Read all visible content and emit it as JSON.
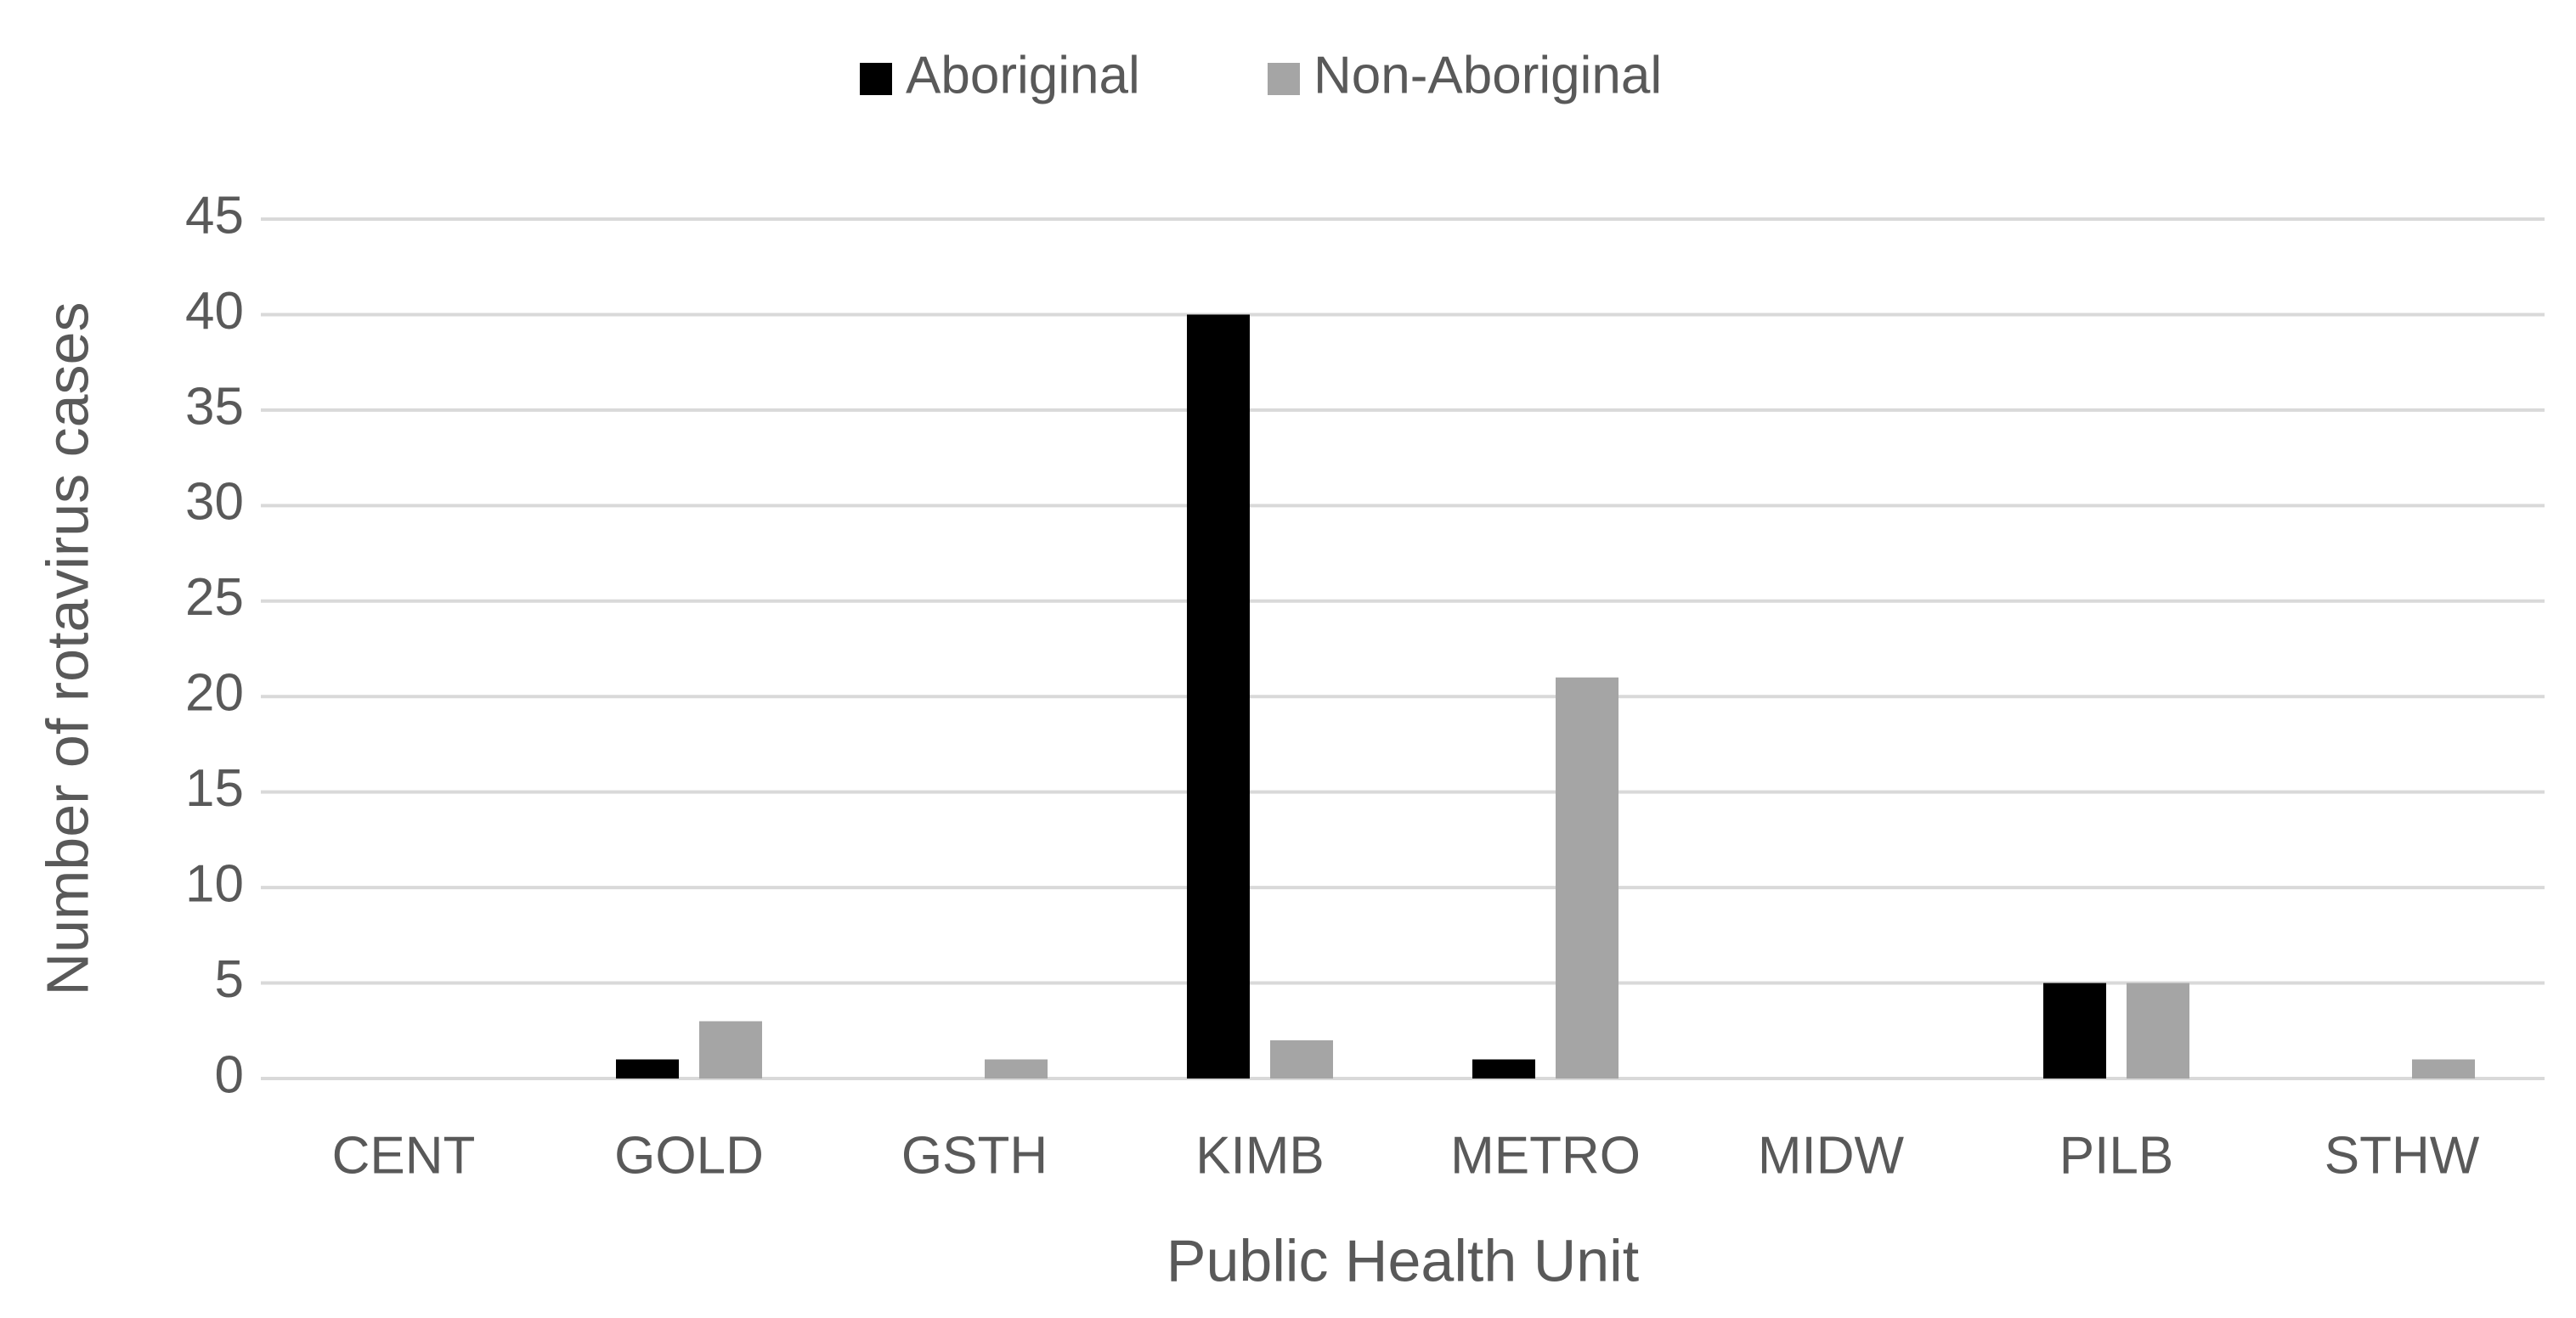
{
  "chart_data": {
    "type": "bar",
    "x_label": "Public Health Unit",
    "y_label": "Number of rotavirus cases",
    "categories": [
      "CENT",
      "GOLD",
      "GSTH",
      "KIMB",
      "METRO",
      "MIDW",
      "PILB",
      "STHW"
    ],
    "series": [
      {
        "name": "Aboriginal",
        "color": "#000000",
        "values": [
          0,
          1,
          0,
          40,
          1,
          0,
          5,
          0
        ]
      },
      {
        "name": "Non-Aboriginal",
        "color": "#a5a5a5",
        "values": [
          0,
          3,
          1,
          2,
          21,
          0,
          5,
          1
        ]
      }
    ],
    "ylim": [
      0,
      45
    ],
    "yticks": [
      0,
      5,
      10,
      15,
      20,
      25,
      30,
      35,
      40,
      45
    ],
    "grid": true,
    "legend": "top"
  }
}
